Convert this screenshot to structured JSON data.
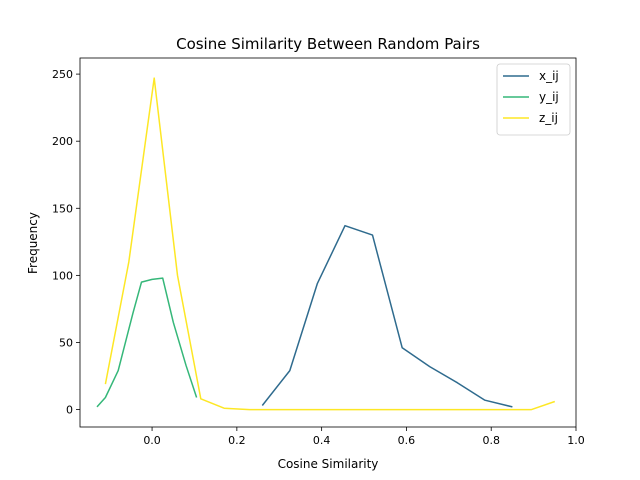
{
  "chart_data": {
    "type": "line",
    "title": "Cosine Similarity Between Random Pairs",
    "xlabel": "Cosine Similarity",
    "ylabel": "Frequency",
    "xlim": [
      -0.17,
      1.0
    ],
    "ylim": [
      -13,
      262
    ],
    "xticks": [
      0.0,
      0.2,
      0.4,
      0.6,
      0.8,
      1.0
    ],
    "xtick_labels": [
      "0.0",
      "0.2",
      "0.4",
      "0.6",
      "0.8",
      "1.0"
    ],
    "yticks": [
      0,
      50,
      100,
      150,
      200,
      250
    ],
    "ytick_labels": [
      "0",
      "50",
      "100",
      "150",
      "200",
      "250"
    ],
    "grid": false,
    "legend_position": "top-right",
    "series": [
      {
        "name": "x_ij",
        "color": "#2f6b8e",
        "x": [
          0.26,
          0.325,
          0.39,
          0.455,
          0.52,
          0.59,
          0.655,
          0.72,
          0.785,
          0.85
        ],
        "y": [
          3,
          29,
          94,
          137,
          130,
          46,
          32,
          20,
          7,
          2
        ]
      },
      {
        "name": "y_ij",
        "color": "#35b779",
        "x": [
          -0.13,
          -0.11,
          -0.08,
          -0.045,
          -0.025,
          0.0,
          0.025,
          0.05,
          0.08,
          0.105
        ],
        "y": [
          2,
          9,
          29,
          72,
          95,
          97,
          98,
          65,
          33,
          9
        ]
      },
      {
        "name": "z_ij",
        "color": "#fde725",
        "x": [
          -0.11,
          -0.055,
          0.005,
          0.06,
          0.115,
          0.17,
          0.23,
          0.3,
          0.4,
          0.5,
          0.6,
          0.7,
          0.8,
          0.85,
          0.895,
          0.95
        ],
        "y": [
          19,
          110,
          247,
          100,
          8,
          1,
          0,
          0,
          0,
          0,
          0,
          0,
          0,
          0,
          0,
          6
        ]
      }
    ]
  }
}
